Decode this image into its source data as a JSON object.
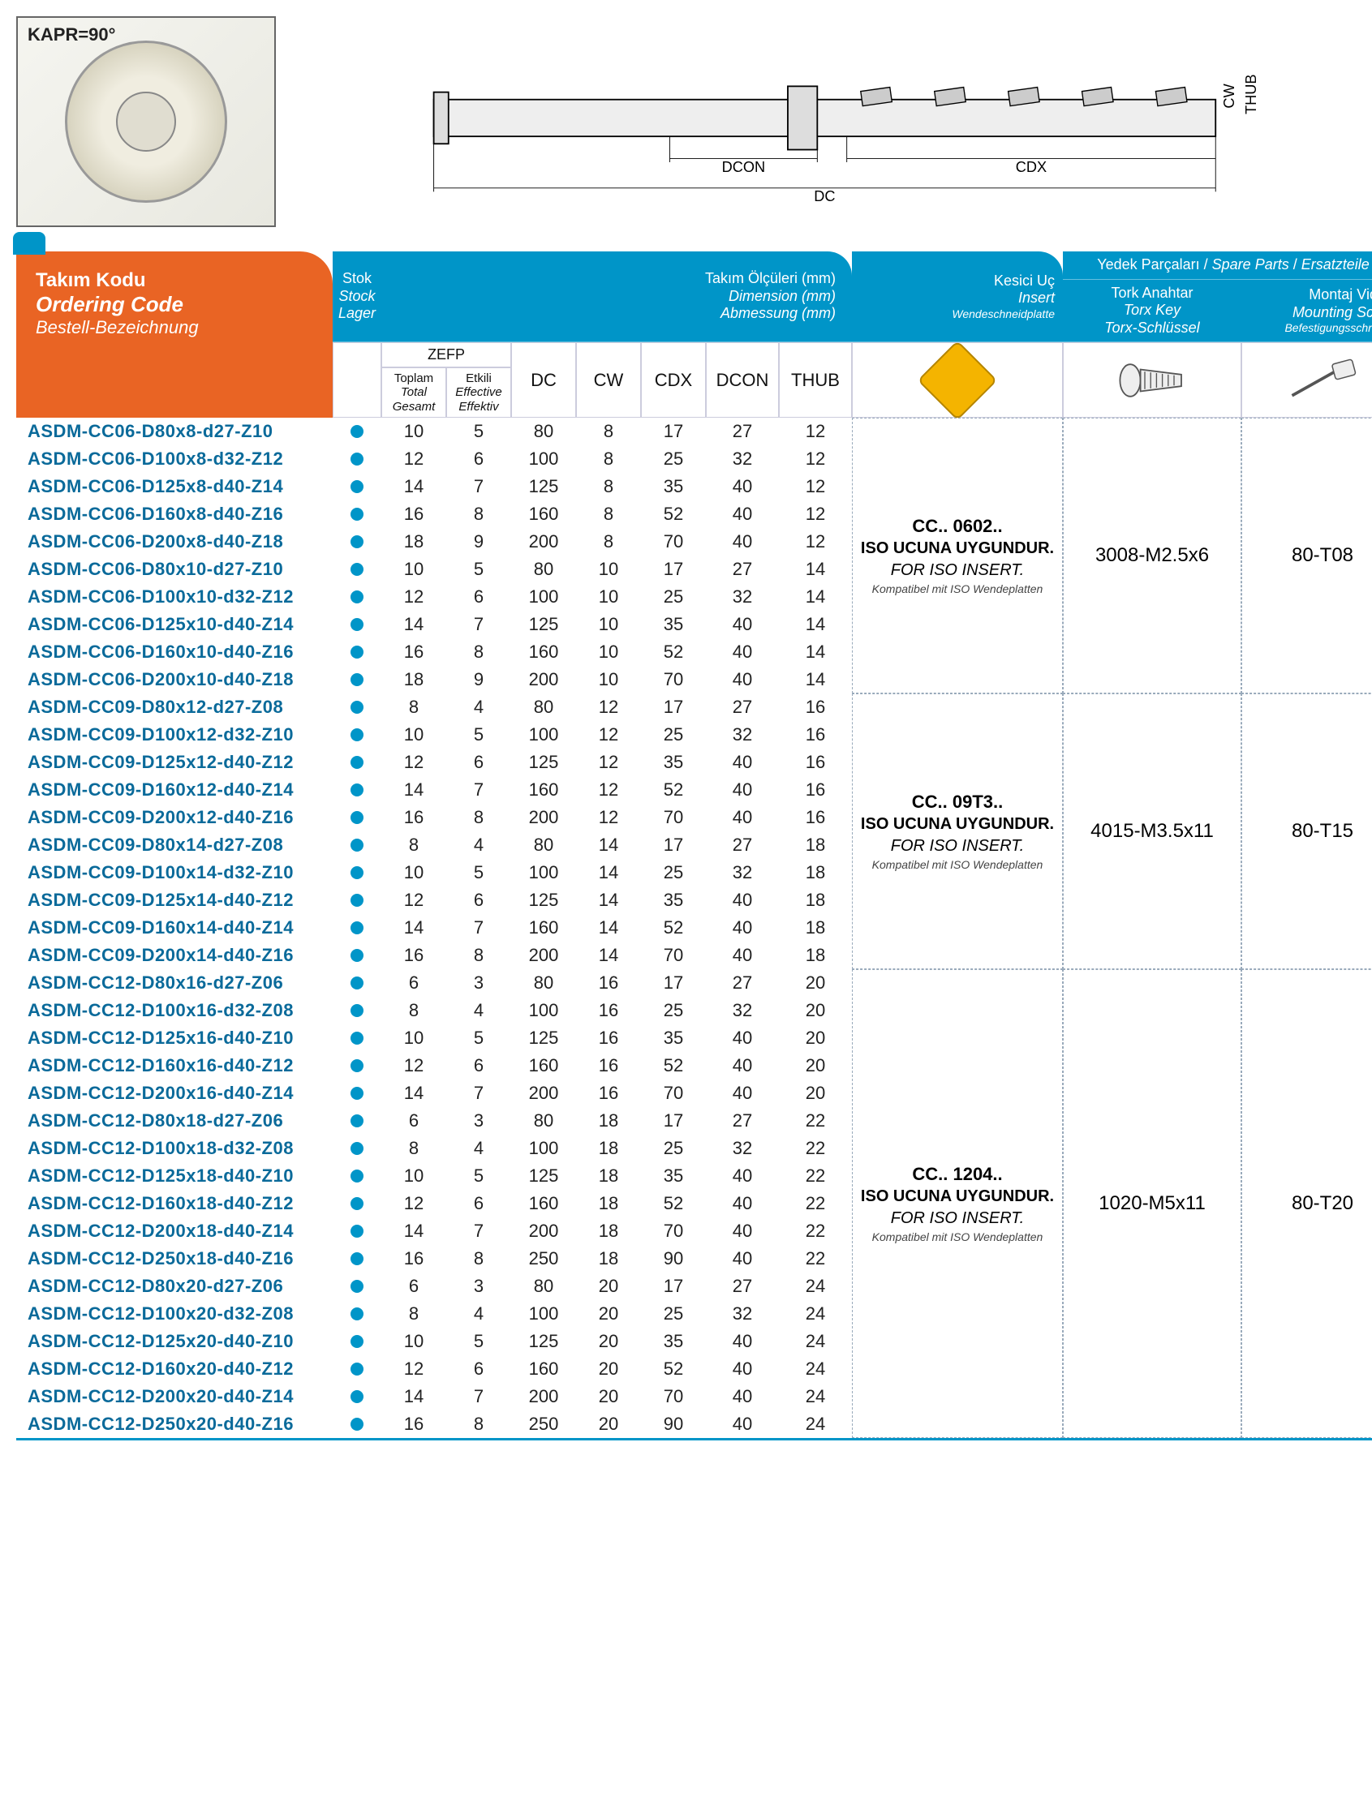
{
  "kapr": "KAPR=90°",
  "diagram": {
    "dc": "DC",
    "dcon": "DCON",
    "cdx": "CDX",
    "cw": "CW",
    "thub": "THUB"
  },
  "header": {
    "orderingCode": {
      "l1": "Takım Kodu",
      "l2": "Ordering Code",
      "l3": "Bestell-Bezeichnung"
    },
    "stock": {
      "t": "Stok",
      "i1": "Stock",
      "i2": "Lager"
    },
    "dimTitle": {
      "t": "Takım Ölçüleri (mm)",
      "i1": "Dimension (mm)",
      "i2": "Abmessung (mm)"
    },
    "insert": {
      "t": "Kesici Uç",
      "i1": "Insert",
      "i2": "Wendeschneidplatte"
    },
    "spareTitle": {
      "t": "Yedek Parçaları",
      "i1": "Spare Parts",
      "i2": "Ersatzteile"
    },
    "torx": {
      "t": "Tork Anahtar",
      "i1": "Torx Key",
      "i2": "Torx-Schlüssel"
    },
    "screw": {
      "t": "Montaj Vidası",
      "i1": "Mounting Screw",
      "i2": "Befestigungsschraube"
    },
    "zefp": "ZEFP",
    "zefpTotal": {
      "t": "Toplam",
      "i1": "Total",
      "i2": "Gesamt"
    },
    "zefpEff": {
      "t": "Etkili",
      "i1": "Effective",
      "i2": "Effektiv"
    },
    "cols": {
      "dc": "DC",
      "cw": "CW",
      "cdx": "CDX",
      "dcon": "DCON",
      "thub": "THUB"
    }
  },
  "groups": [
    {
      "insertCode": "CC.. 0602..",
      "note1": "ISO UCUNA UYGUNDUR.",
      "note2": "FOR ISO INSERT.",
      "note3": "Kompatibel mit ISO Wendeplatten",
      "torx": "3008-M2.5x6",
      "screw": "80-T08",
      "rows": [
        {
          "code": "ASDM-CC06-D80x8-d27-Z10",
          "zt": 10,
          "ze": 5,
          "dc": 80,
          "cw": 8,
          "cdx": 17,
          "dcon": 27,
          "thub": 12,
          "div": false
        },
        {
          "code": "ASDM-CC06-D100x8-d32-Z12",
          "zt": 12,
          "ze": 6,
          "dc": 100,
          "cw": 8,
          "cdx": 25,
          "dcon": 32,
          "thub": 12,
          "div": false
        },
        {
          "code": "ASDM-CC06-D125x8-d40-Z14",
          "zt": 14,
          "ze": 7,
          "dc": 125,
          "cw": 8,
          "cdx": 35,
          "dcon": 40,
          "thub": 12,
          "div": false
        },
        {
          "code": "ASDM-CC06-D160x8-d40-Z16",
          "zt": 16,
          "ze": 8,
          "dc": 160,
          "cw": 8,
          "cdx": 52,
          "dcon": 40,
          "thub": 12,
          "div": false
        },
        {
          "code": "ASDM-CC06-D200x8-d40-Z18",
          "zt": 18,
          "ze": 9,
          "dc": 200,
          "cw": 8,
          "cdx": 70,
          "dcon": 40,
          "thub": 12,
          "div": false
        },
        {
          "code": "ASDM-CC06-D80x10-d27-Z10",
          "zt": 10,
          "ze": 5,
          "dc": 80,
          "cw": 10,
          "cdx": 17,
          "dcon": 27,
          "thub": 14,
          "div": true
        },
        {
          "code": "ASDM-CC06-D100x10-d32-Z12",
          "zt": 12,
          "ze": 6,
          "dc": 100,
          "cw": 10,
          "cdx": 25,
          "dcon": 32,
          "thub": 14,
          "div": false
        },
        {
          "code": "ASDM-CC06-D125x10-d40-Z14",
          "zt": 14,
          "ze": 7,
          "dc": 125,
          "cw": 10,
          "cdx": 35,
          "dcon": 40,
          "thub": 14,
          "div": false
        },
        {
          "code": "ASDM-CC06-D160x10-d40-Z16",
          "zt": 16,
          "ze": 8,
          "dc": 160,
          "cw": 10,
          "cdx": 52,
          "dcon": 40,
          "thub": 14,
          "div": false
        },
        {
          "code": "ASDM-CC06-D200x10-d40-Z18",
          "zt": 18,
          "ze": 9,
          "dc": 200,
          "cw": 10,
          "cdx": 70,
          "dcon": 40,
          "thub": 14,
          "div": false
        }
      ]
    },
    {
      "insertCode": "CC.. 09T3..",
      "note1": "ISO UCUNA UYGUNDUR.",
      "note2": "FOR ISO INSERT.",
      "note3": "Kompatibel mit ISO Wendeplatten",
      "torx": "4015-M3.5x11",
      "screw": "80-T15",
      "rows": [
        {
          "code": "ASDM-CC09-D80x12-d27-Z08",
          "zt": 8,
          "ze": 4,
          "dc": 80,
          "cw": 12,
          "cdx": 17,
          "dcon": 27,
          "thub": 16,
          "div": true
        },
        {
          "code": "ASDM-CC09-D100x12-d32-Z10",
          "zt": 10,
          "ze": 5,
          "dc": 100,
          "cw": 12,
          "cdx": 25,
          "dcon": 32,
          "thub": 16,
          "div": false
        },
        {
          "code": "ASDM-CC09-D125x12-d40-Z12",
          "zt": 12,
          "ze": 6,
          "dc": 125,
          "cw": 12,
          "cdx": 35,
          "dcon": 40,
          "thub": 16,
          "div": false
        },
        {
          "code": "ASDM-CC09-D160x12-d40-Z14",
          "zt": 14,
          "ze": 7,
          "dc": 160,
          "cw": 12,
          "cdx": 52,
          "dcon": 40,
          "thub": 16,
          "div": false
        },
        {
          "code": "ASDM-CC09-D200x12-d40-Z16",
          "zt": 16,
          "ze": 8,
          "dc": 200,
          "cw": 12,
          "cdx": 70,
          "dcon": 40,
          "thub": 16,
          "div": false
        },
        {
          "code": "ASDM-CC09-D80x14-d27-Z08",
          "zt": 8,
          "ze": 4,
          "dc": 80,
          "cw": 14,
          "cdx": 17,
          "dcon": 27,
          "thub": 18,
          "div": true
        },
        {
          "code": "ASDM-CC09-D100x14-d32-Z10",
          "zt": 10,
          "ze": 5,
          "dc": 100,
          "cw": 14,
          "cdx": 25,
          "dcon": 32,
          "thub": 18,
          "div": false
        },
        {
          "code": "ASDM-CC09-D125x14-d40-Z12",
          "zt": 12,
          "ze": 6,
          "dc": 125,
          "cw": 14,
          "cdx": 35,
          "dcon": 40,
          "thub": 18,
          "div": false
        },
        {
          "code": "ASDM-CC09-D160x14-d40-Z14",
          "zt": 14,
          "ze": 7,
          "dc": 160,
          "cw": 14,
          "cdx": 52,
          "dcon": 40,
          "thub": 18,
          "div": false
        },
        {
          "code": "ASDM-CC09-D200x14-d40-Z16",
          "zt": 16,
          "ze": 8,
          "dc": 200,
          "cw": 14,
          "cdx": 70,
          "dcon": 40,
          "thub": 18,
          "div": false
        }
      ]
    },
    {
      "insertCode": "CC.. 1204..",
      "note1": "ISO UCUNA UYGUNDUR.",
      "note2": "FOR ISO INSERT.",
      "note3": "Kompatibel mit ISO Wendeplatten",
      "torx": "1020-M5x11",
      "screw": "80-T20",
      "rows": [
        {
          "code": "ASDM-CC12-D80x16-d27-Z06",
          "zt": 6,
          "ze": 3,
          "dc": 80,
          "cw": 16,
          "cdx": 17,
          "dcon": 27,
          "thub": 20,
          "div": true
        },
        {
          "code": "ASDM-CC12-D100x16-d32-Z08",
          "zt": 8,
          "ze": 4,
          "dc": 100,
          "cw": 16,
          "cdx": 25,
          "dcon": 32,
          "thub": 20,
          "div": false
        },
        {
          "code": "ASDM-CC12-D125x16-d40-Z10",
          "zt": 10,
          "ze": 5,
          "dc": 125,
          "cw": 16,
          "cdx": 35,
          "dcon": 40,
          "thub": 20,
          "div": false
        },
        {
          "code": "ASDM-CC12-D160x16-d40-Z12",
          "zt": 12,
          "ze": 6,
          "dc": 160,
          "cw": 16,
          "cdx": 52,
          "dcon": 40,
          "thub": 20,
          "div": false
        },
        {
          "code": "ASDM-CC12-D200x16-d40-Z14",
          "zt": 14,
          "ze": 7,
          "dc": 200,
          "cw": 16,
          "cdx": 70,
          "dcon": 40,
          "thub": 20,
          "div": false
        },
        {
          "code": "ASDM-CC12-D80x18-d27-Z06",
          "zt": 6,
          "ze": 3,
          "dc": 80,
          "cw": 18,
          "cdx": 17,
          "dcon": 27,
          "thub": 22,
          "div": true
        },
        {
          "code": "ASDM-CC12-D100x18-d32-Z08",
          "zt": 8,
          "ze": 4,
          "dc": 100,
          "cw": 18,
          "cdx": 25,
          "dcon": 32,
          "thub": 22,
          "div": false
        },
        {
          "code": "ASDM-CC12-D125x18-d40-Z10",
          "zt": 10,
          "ze": 5,
          "dc": 125,
          "cw": 18,
          "cdx": 35,
          "dcon": 40,
          "thub": 22,
          "div": false
        },
        {
          "code": "ASDM-CC12-D160x18-d40-Z12",
          "zt": 12,
          "ze": 6,
          "dc": 160,
          "cw": 18,
          "cdx": 52,
          "dcon": 40,
          "thub": 22,
          "div": false
        },
        {
          "code": "ASDM-CC12-D200x18-d40-Z14",
          "zt": 14,
          "ze": 7,
          "dc": 200,
          "cw": 18,
          "cdx": 70,
          "dcon": 40,
          "thub": 22,
          "div": false
        },
        {
          "code": "ASDM-CC12-D250x18-d40-Z16",
          "zt": 16,
          "ze": 8,
          "dc": 250,
          "cw": 18,
          "cdx": 90,
          "dcon": 40,
          "thub": 22,
          "div": false
        },
        {
          "code": "ASDM-CC12-D80x20-d27-Z06",
          "zt": 6,
          "ze": 3,
          "dc": 80,
          "cw": 20,
          "cdx": 17,
          "dcon": 27,
          "thub": 24,
          "div": true
        },
        {
          "code": "ASDM-CC12-D100x20-d32-Z08",
          "zt": 8,
          "ze": 4,
          "dc": 100,
          "cw": 20,
          "cdx": 25,
          "dcon": 32,
          "thub": 24,
          "div": false
        },
        {
          "code": "ASDM-CC12-D125x20-d40-Z10",
          "zt": 10,
          "ze": 5,
          "dc": 125,
          "cw": 20,
          "cdx": 35,
          "dcon": 40,
          "thub": 24,
          "div": false
        },
        {
          "code": "ASDM-CC12-D160x20-d40-Z12",
          "zt": 12,
          "ze": 6,
          "dc": 160,
          "cw": 20,
          "cdx": 52,
          "dcon": 40,
          "thub": 24,
          "div": false
        },
        {
          "code": "ASDM-CC12-D200x20-d40-Z14",
          "zt": 14,
          "ze": 7,
          "dc": 200,
          "cw": 20,
          "cdx": 70,
          "dcon": 40,
          "thub": 24,
          "div": false
        },
        {
          "code": "ASDM-CC12-D250x20-d40-Z16",
          "zt": 16,
          "ze": 8,
          "dc": 250,
          "cw": 20,
          "cdx": 90,
          "dcon": 40,
          "thub": 24,
          "div": false
        }
      ]
    }
  ],
  "colors": {
    "blue": "#0095c8",
    "orange": "#e96424",
    "rowOdd": "#cdeaf3",
    "rowEven": "#e6f5fa",
    "codeText": "#0a6a9a"
  }
}
